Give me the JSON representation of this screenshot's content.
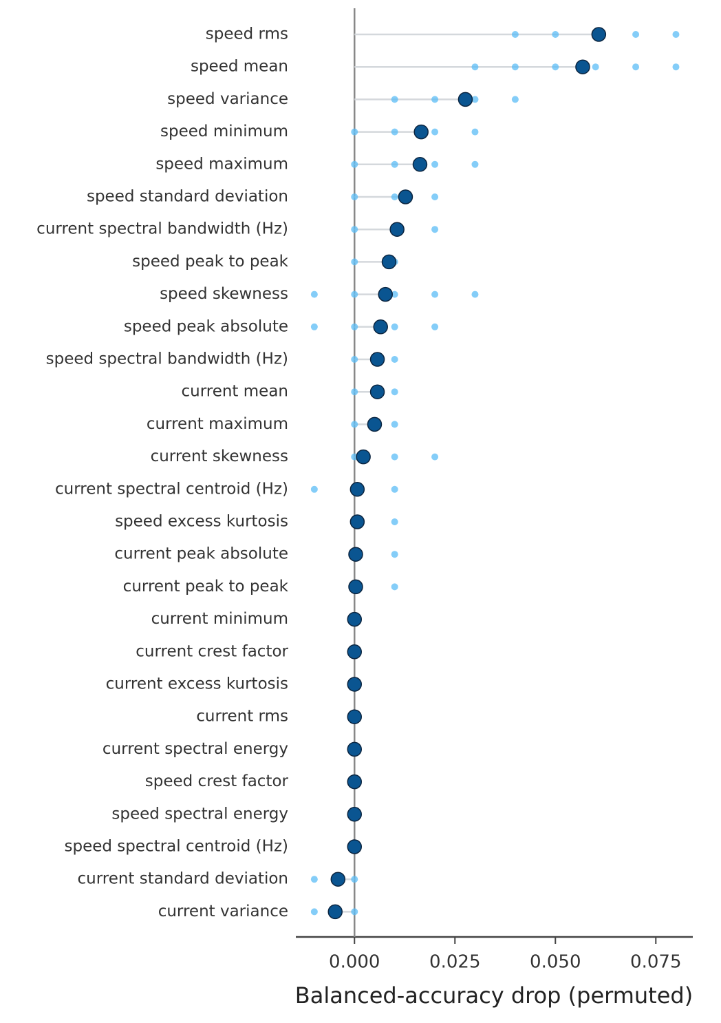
{
  "chart_data": {
    "type": "lollipop",
    "xlabel": "Balanced-accuracy drop (permuted)",
    "categories": [
      "speed rms",
      "speed mean",
      "speed variance",
      "speed minimum",
      "speed maximum",
      "speed standard deviation",
      "current spectral bandwidth (Hz)",
      "speed peak to peak",
      "speed skewness",
      "speed peak absolute",
      "speed spectral bandwidth (Hz)",
      "current mean",
      "current maximum",
      "current skewness",
      "current spectral centroid (Hz)",
      "speed excess kurtosis",
      "current peak absolute",
      "current peak to peak",
      "current minimum",
      "current crest factor",
      "current excess kurtosis",
      "current rms",
      "current spectral energy",
      "speed crest factor",
      "speed spectral energy",
      "speed spectral centroid (Hz)",
      "current standard deviation",
      "current variance"
    ],
    "values": [
      0.0608,
      0.0568,
      0.0276,
      0.0166,
      0.0163,
      0.0127,
      0.0106,
      0.0086,
      0.0077,
      0.0065,
      0.0057,
      0.0057,
      0.005,
      0.0022,
      0.0007,
      0.0007,
      0.0003,
      0.0003,
      0,
      0,
      0,
      0,
      0,
      0,
      0,
      0,
      -0.0041,
      -0.0048
    ],
    "repeats": [
      [
        0.04,
        0.05,
        0.06,
        0.07,
        0.08
      ],
      [
        0.03,
        0.04,
        0.05,
        0.06,
        0.07,
        0.08
      ],
      [
        0.01,
        0.02,
        0.03,
        0.04
      ],
      [
        0,
        0.01,
        0.02,
        0.03
      ],
      [
        0,
        0.01,
        0.02,
        0.03
      ],
      [
        0,
        0.01,
        0.02
      ],
      [
        0,
        0.01,
        0.02
      ],
      [
        0,
        0.01
      ],
      [
        -0.01,
        0,
        0.01,
        0.02,
        0.03
      ],
      [
        -0.01,
        0,
        0.01,
        0.02
      ],
      [
        0,
        0.01
      ],
      [
        0,
        0.01
      ],
      [
        0,
        0.01
      ],
      [
        0,
        0.01,
        0.02
      ],
      [
        -0.01,
        0.01
      ],
      [
        0.01
      ],
      [
        0.01
      ],
      [
        0.01
      ],
      [],
      [],
      [],
      [],
      [],
      [],
      [],
      [],
      [
        -0.01,
        0
      ],
      [
        -0.01,
        0
      ]
    ],
    "color": "#0a5591",
    "repeat_color": "#5bbcf5",
    "xlim": [
      -0.0146,
      0.0842
    ],
    "xticks": [
      {
        "value": 0,
        "label": "0.000"
      },
      {
        "value": 0.025,
        "label": "0.025"
      },
      {
        "value": 0.05,
        "label": "0.050"
      },
      {
        "value": 0.075,
        "label": "0.075"
      }
    ]
  }
}
